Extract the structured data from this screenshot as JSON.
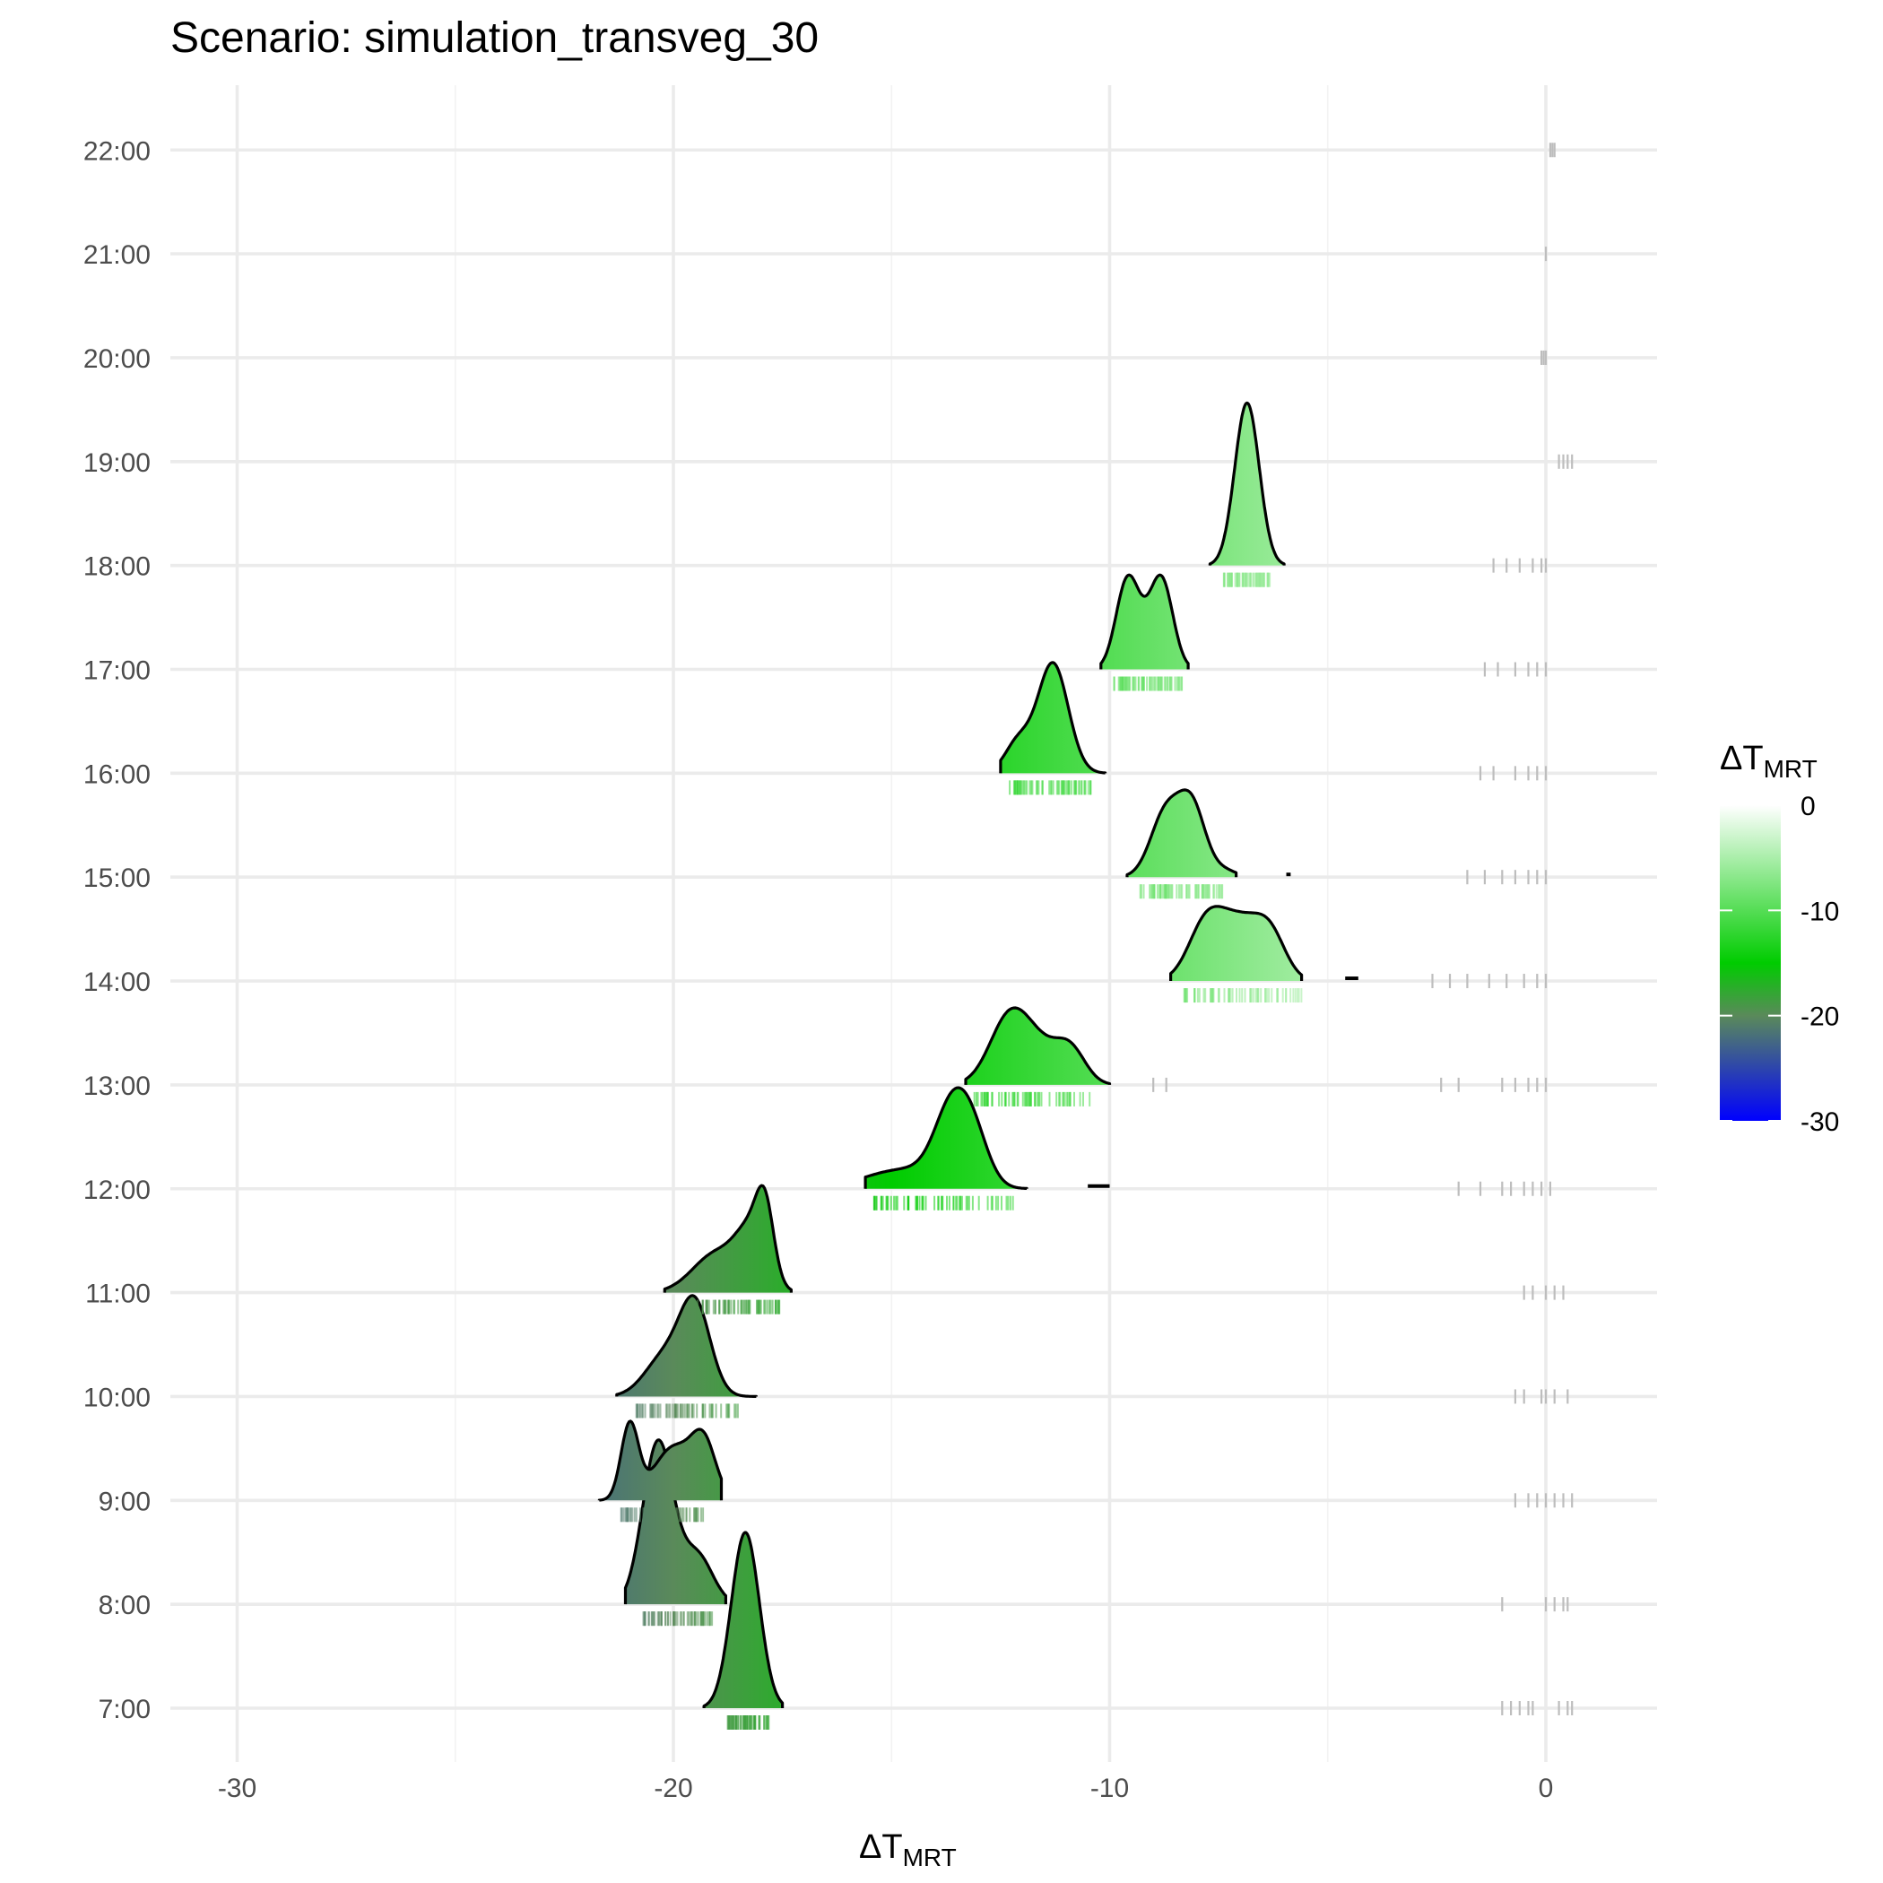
{
  "chart_data": {
    "type": "ridgeline",
    "title": "Scenario: simulation_transveg_30",
    "xlabel_main": "ΔT",
    "xlabel_sub": "MRT",
    "xlim": [
      -31,
      2.5
    ],
    "x_ticks": [
      -30,
      -20,
      -10,
      0
    ],
    "x_tick_labels": [
      "-30",
      "-20",
      "-10",
      "0"
    ],
    "categories": [
      "7:00",
      "8:00",
      "9:00",
      "10:00",
      "11:00",
      "12:00",
      "13:00",
      "14:00",
      "15:00",
      "16:00",
      "17:00",
      "18:00",
      "19:00",
      "20:00",
      "21:00",
      "22:00"
    ],
    "grid": true,
    "legend": {
      "title_main": "ΔT",
      "title_sub": "MRT",
      "position": "right",
      "range": [
        -30,
        0
      ],
      "ticks": [
        0,
        -10,
        -20,
        -30
      ],
      "tick_labels": [
        "0",
        "-10",
        "-20",
        "-30"
      ],
      "color_stops": [
        {
          "value": 0,
          "color": "#ffffff"
        },
        {
          "value": -15,
          "color": "#00cc00"
        },
        {
          "value": -20,
          "color": "#5a8a5a"
        },
        {
          "value": -30,
          "color": "#0000ff"
        }
      ]
    },
    "series": [
      {
        "category": "7:00",
        "range": [
          -19.3,
          -17.5
        ],
        "peaks": [
          {
            "x": -18.35,
            "h": 2.0,
            "w": 0.32
          }
        ],
        "rug_range": [
          -18.8,
          -17.8
        ],
        "outliers": [
          -1.0,
          -0.8,
          -0.6,
          -0.4,
          -0.3,
          0.3,
          0.5,
          0.6
        ]
      },
      {
        "category": "8:00",
        "range": [
          -21.1,
          -18.8
        ],
        "peaks": [
          {
            "x": -20.35,
            "h": 1.85,
            "w": 0.35
          },
          {
            "x": -19.45,
            "h": 0.55,
            "w": 0.35
          }
        ],
        "rug_range": [
          -20.7,
          -19.1
        ],
        "outliers": [
          -1.0,
          0.0,
          0.2,
          0.4,
          0.5
        ]
      },
      {
        "category": "9:00",
        "range": [
          -21.7,
          -18.9
        ],
        "peaks": [
          {
            "x": -21.0,
            "h": 0.85,
            "w": 0.2
          },
          {
            "x": -20.0,
            "h": 0.6,
            "w": 0.45
          },
          {
            "x": -19.3,
            "h": 0.6,
            "w": 0.28
          }
        ],
        "rug_range": [
          -21.2,
          -19.3
        ],
        "outliers": [
          -0.7,
          -0.4,
          -0.2,
          0.0,
          0.2,
          0.4,
          0.6
        ]
      },
      {
        "category": "10:00",
        "range": [
          -21.3,
          -18.1
        ],
        "peaks": [
          {
            "x": -20.2,
            "h": 0.45,
            "w": 0.45
          },
          {
            "x": -19.5,
            "h": 1.0,
            "w": 0.35
          }
        ],
        "rug_range": [
          -20.9,
          -18.5
        ],
        "outliers": [
          -0.7,
          -0.5,
          -0.1,
          0.0,
          0.2,
          0.5
        ]
      },
      {
        "category": "11:00",
        "range": [
          -20.2,
          -17.3
        ],
        "peaks": [
          {
            "x": -19.0,
            "h": 0.45,
            "w": 0.55
          },
          {
            "x": -18.2,
            "h": 0.6,
            "w": 0.35
          },
          {
            "x": -17.9,
            "h": 0.7,
            "w": 0.2
          }
        ],
        "rug_range": [
          -19.5,
          -17.5
        ],
        "outliers": [
          -0.5,
          -0.3,
          0.0,
          0.2,
          0.4
        ]
      },
      {
        "category": "12:00",
        "range": [
          -15.6,
          -11.9
        ],
        "peaks": [
          {
            "x": -14.7,
            "h": 0.22,
            "w": 0.9
          },
          {
            "x": -13.6,
            "h": 0.85,
            "w": 0.4
          },
          {
            "x": -13.1,
            "h": 0.45,
            "w": 0.35
          }
        ],
        "rug_range": [
          -15.4,
          -12.2
        ],
        "outliers": [
          -2.0,
          -1.5,
          -1.0,
          -0.8,
          -0.5,
          -0.3,
          -0.1,
          0.1
        ]
      },
      {
        "category": "13:00",
        "range": [
          -13.3,
          -10.0
        ],
        "peaks": [
          {
            "x": -12.3,
            "h": 0.75,
            "w": 0.45
          },
          {
            "x": -11.6,
            "h": 0.35,
            "w": 0.45
          },
          {
            "x": -10.9,
            "h": 0.38,
            "w": 0.35
          }
        ],
        "rug_range": [
          -13.1,
          -10.3
        ],
        "outliers": [
          -9.0,
          -8.7,
          -2.4,
          -2.0,
          -1.0,
          -0.7,
          -0.4,
          -0.2,
          0.0
        ]
      },
      {
        "category": "14:00",
        "range": [
          -8.6,
          -5.6
        ],
        "peaks": [
          {
            "x": -7.8,
            "h": 0.6,
            "w": 0.4
          },
          {
            "x": -7.0,
            "h": 0.65,
            "w": 0.5
          },
          {
            "x": -6.3,
            "h": 0.42,
            "w": 0.35
          }
        ],
        "rug_range": [
          -8.3,
          -5.6
        ],
        "outliers": [
          -2.6,
          -2.2,
          -1.8,
          -1.3,
          -0.9,
          -0.5,
          -0.2,
          0.0
        ]
      },
      {
        "category": "15:00",
        "range": [
          -9.6,
          -7.1
        ],
        "peaks": [
          {
            "x": -8.7,
            "h": 0.75,
            "w": 0.35
          },
          {
            "x": -8.1,
            "h": 0.75,
            "w": 0.3
          },
          {
            "x": -7.4,
            "h": 0.08,
            "w": 0.3
          }
        ],
        "rug_range": [
          -9.3,
          -7.4
        ],
        "outliers": [
          -1.8,
          -1.4,
          -1.0,
          -0.7,
          -0.4,
          -0.2,
          0.0
        ]
      },
      {
        "category": "16:00",
        "range": [
          -12.5,
          -10.1
        ],
        "peaks": [
          {
            "x": -12.1,
            "h": 0.35,
            "w": 0.3
          },
          {
            "x": -11.3,
            "h": 1.25,
            "w": 0.35
          }
        ],
        "rug_range": [
          -12.3,
          -10.4
        ],
        "outliers": [
          -1.5,
          -1.2,
          -0.7,
          -0.4,
          -0.2,
          0.0
        ]
      },
      {
        "category": "17:00",
        "range": [
          -10.2,
          -8.2
        ],
        "peaks": [
          {
            "x": -9.6,
            "h": 0.95,
            "w": 0.26
          },
          {
            "x": -8.8,
            "h": 0.95,
            "w": 0.26
          },
          {
            "x": -9.2,
            "h": 0.25,
            "w": 0.3
          }
        ],
        "rug_range": [
          -9.9,
          -8.3
        ],
        "outliers": [
          -1.4,
          -1.1,
          -0.7,
          -0.4,
          -0.2,
          0.0
        ]
      },
      {
        "category": "18:00",
        "range": [
          -7.7,
          -6.0
        ],
        "peaks": [
          {
            "x": -6.85,
            "h": 1.85,
            "w": 0.28
          }
        ],
        "rug_range": [
          -7.4,
          -6.3
        ],
        "outliers": [
          -1.2,
          -0.9,
          -0.6,
          -0.3,
          -0.1,
          0.0
        ]
      },
      {
        "category": "19:00",
        "range": null,
        "peaks": [],
        "rug_range": null,
        "outliers": [
          0.3,
          0.4,
          0.5,
          0.6
        ]
      },
      {
        "category": "20:00",
        "range": null,
        "peaks": [],
        "rug_range": null,
        "outliers": [
          -0.1,
          -0.05,
          0.0
        ]
      },
      {
        "category": "21:00",
        "range": null,
        "peaks": [],
        "rug_range": null,
        "outliers": [
          0.0
        ]
      },
      {
        "category": "22:00",
        "range": null,
        "peaks": [],
        "rug_range": null,
        "outliers": [
          0.1,
          0.15,
          0.2
        ]
      }
    ],
    "isolated_marks": [
      {
        "category": "12:00",
        "range": [
          -10.5,
          -10.0
        ]
      },
      {
        "category": "14:00",
        "range": [
          -4.6,
          -4.3
        ]
      },
      {
        "category": "15:00",
        "range": [
          -5.95,
          -5.85
        ]
      }
    ]
  }
}
